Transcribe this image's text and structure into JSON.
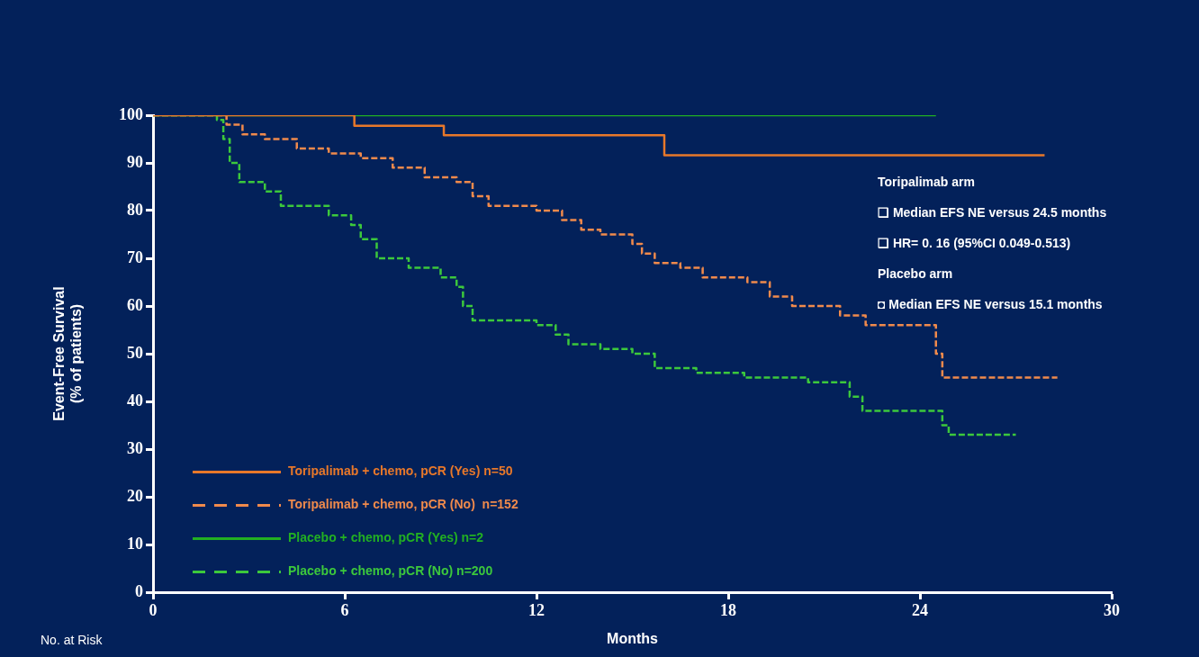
{
  "chart_data": {
    "type": "step",
    "xlabel": "Months",
    "ylabel": "Event-Free Survival\n(% of patients)",
    "xlim": [
      0,
      30
    ],
    "xticks": [
      0,
      6,
      12,
      18,
      24,
      30
    ],
    "ylim": [
      0,
      100
    ],
    "yticks": [
      0,
      10,
      20,
      30,
      40,
      50,
      60,
      70,
      80,
      90,
      100
    ],
    "grid": false,
    "legend": "bottom left",
    "marker": "none",
    "series": [
      {
        "name": "Toripalimab + chemo, pCR (Yes) n=50",
        "color": "#e8782a",
        "line_style": "solid",
        "x": [
          0,
          6.3,
          9.1,
          16.0,
          27.9
        ],
        "values": [
          100,
          97.8,
          95.8,
          91.6,
          91.6
        ]
      },
      {
        "name": "Toripalimab + chemo, pCR (No)  n=152",
        "color": "#f08a4c",
        "line_style": "dashed",
        "x": [
          0,
          2.0,
          2.3,
          2.8,
          3.5,
          4.5,
          5.5,
          6.5,
          7.5,
          8.5,
          9.5,
          10,
          10.5,
          12,
          12.8,
          13.4,
          14,
          15,
          15.3,
          15.7,
          16.5,
          17.2,
          18.6,
          19.3,
          20,
          21.5,
          22.3,
          24.3,
          24.5,
          24.7,
          28.3
        ],
        "values": [
          100,
          100,
          98,
          96,
          95,
          93,
          92,
          91,
          89,
          87,
          86,
          83,
          81,
          80,
          78,
          76,
          75,
          73,
          71,
          69,
          68,
          66,
          65,
          62,
          60,
          58,
          56,
          56,
          50,
          45,
          45
        ]
      },
      {
        "name": "Placebo + chemo, pCR (Yes) n=2",
        "color": "#22b022",
        "line_style": "solid",
        "x": [
          0,
          24.5
        ],
        "values": [
          100,
          100
        ]
      },
      {
        "name": "Placebo + chemo, pCR (No) n=200",
        "color": "#3cc83c",
        "line_style": "dashed",
        "x": [
          0,
          2.0,
          2.2,
          2.4,
          2.7,
          3.5,
          4,
          5.5,
          6.2,
          6.5,
          7,
          8,
          9,
          9.5,
          9.7,
          10,
          12,
          12.6,
          13,
          14,
          15,
          15.7,
          17,
          18.5,
          20.5,
          21.8,
          22.2,
          24.5,
          24.7,
          24.9,
          27
        ],
        "values": [
          100,
          99,
          95,
          90,
          86,
          84,
          81,
          79,
          77,
          74,
          70,
          68,
          66,
          64,
          60,
          57,
          56,
          54,
          52,
          51,
          50,
          47,
          46,
          45,
          44,
          41,
          38,
          38,
          35,
          33,
          33
        ]
      }
    ],
    "annotations": [
      "Toripalimab arm",
      "❑  Median EFS NE versus 24.5 months",
      "❑  HR= 0. 16 (95%CI 0.049-0.513)",
      "Placebo arm",
      "◘  Median EFS NE versus 15.1 months",
      "No. at Risk"
    ]
  }
}
